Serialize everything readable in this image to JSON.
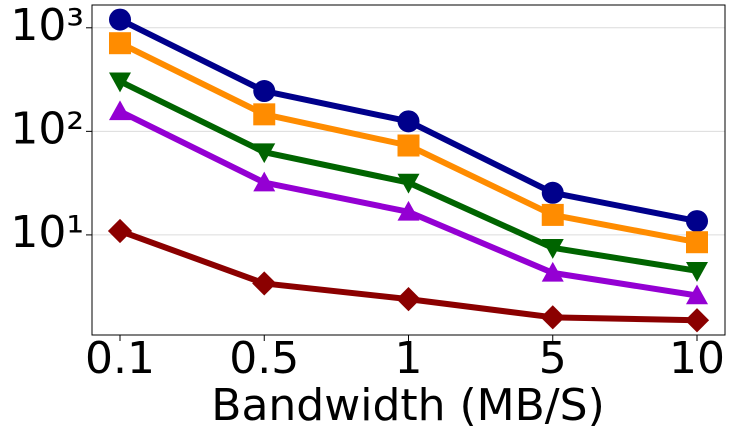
{
  "chart_data": {
    "type": "line",
    "x_label": "Bandwidth (MB/S)",
    "categories": [
      "0.1",
      "0.5",
      "1",
      "5",
      "10"
    ],
    "y_scale": "log",
    "ylim": [
      1.08,
      1660
    ],
    "yticks": [
      {
        "value": 10,
        "label": "10¹"
      },
      {
        "value": 100,
        "label": "10²"
      },
      {
        "value": 1000,
        "label": "10³"
      }
    ],
    "grid": true,
    "series": [
      {
        "color": "#00008b",
        "marker": "circle",
        "values": [
          1200,
          245,
          125,
          25.5,
          13.6
        ]
      },
      {
        "color": "#ff8c00",
        "marker": "square",
        "values": [
          710,
          146,
          73,
          15.6,
          8.5
        ]
      },
      {
        "color": "#006400",
        "marker": "triangle-down",
        "values": [
          304,
          63,
          32,
          7.5,
          4.5
        ]
      },
      {
        "color": "#9400d3",
        "marker": "triangle-up",
        "values": [
          156,
          32,
          16.7,
          4.3,
          2.6
        ]
      },
      {
        "color": "#8b0000",
        "marker": "diamond",
        "values": [
          10.9,
          3.4,
          2.4,
          1.6,
          1.5
        ]
      }
    ]
  }
}
